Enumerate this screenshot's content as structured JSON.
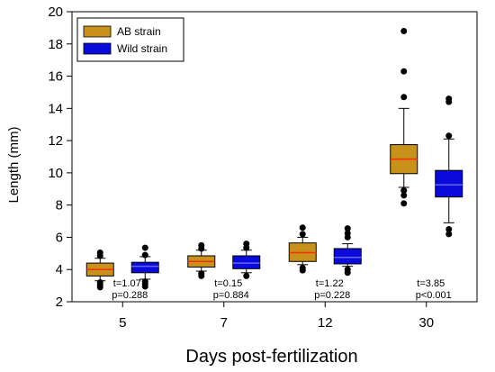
{
  "chart_data": {
    "type": "box",
    "xlabel": "Days post-fertilization",
    "ylabel": "Length (mm)",
    "ylim": [
      2,
      20
    ],
    "yticks": [
      2,
      4,
      6,
      8,
      10,
      12,
      14,
      16,
      18,
      20
    ],
    "categories": [
      "5",
      "7",
      "12",
      "30"
    ],
    "legend": {
      "placement": "top-left",
      "entries": [
        "AB strain",
        "Wild strain"
      ]
    },
    "series": [
      {
        "name": "AB strain",
        "box_color": "#c8911a",
        "median_color": "#ff2a00",
        "boxes": [
          {
            "category": "5",
            "whisker_low": 3.3,
            "q1": 3.6,
            "median": 4.0,
            "q3": 4.4,
            "whisker_high": 4.7,
            "outliers": [
              2.9,
              3.05,
              3.2,
              4.85,
              5.05
            ]
          },
          {
            "category": "7",
            "whisker_low": 3.9,
            "q1": 4.15,
            "median": 4.5,
            "q3": 4.85,
            "whisker_high": 5.2,
            "outliers": [
              3.6,
              3.75,
              5.3,
              5.5
            ]
          },
          {
            "category": "12",
            "whisker_low": 4.3,
            "q1": 4.5,
            "median": 5.05,
            "q3": 5.65,
            "whisker_high": 6.0,
            "outliers": [
              3.95,
              4.1,
              6.2,
              6.6
            ]
          },
          {
            "category": "30",
            "whisker_low": 9.1,
            "q1": 9.95,
            "median": 10.85,
            "q3": 11.75,
            "whisker_high": 14.0,
            "outliers": [
              8.1,
              8.6,
              8.9,
              14.7,
              16.3,
              18.8
            ]
          }
        ]
      },
      {
        "name": "Wild strain",
        "box_color": "#0a0adc",
        "median_color": "#6464ff",
        "boxes": [
          {
            "category": "5",
            "whisker_low": 3.4,
            "q1": 3.8,
            "median": 4.2,
            "q3": 4.45,
            "whisker_high": 4.8,
            "outliers": [
              2.95,
              3.1,
              3.25,
              4.9,
              5.35
            ]
          },
          {
            "category": "7",
            "whisker_low": 3.8,
            "q1": 4.05,
            "median": 4.4,
            "q3": 4.85,
            "whisker_high": 5.2,
            "outliers": [
              3.6,
              5.35,
              5.6
            ]
          },
          {
            "category": "12",
            "whisker_low": 4.2,
            "q1": 4.35,
            "median": 4.75,
            "q3": 5.3,
            "whisker_high": 5.6,
            "outliers": [
              3.8,
              4.0,
              6.0,
              6.25,
              6.55
            ]
          },
          {
            "category": "30",
            "whisker_low": 6.9,
            "q1": 8.5,
            "median": 9.25,
            "q3": 10.15,
            "whisker_high": 12.1,
            "outliers": [
              6.2,
              6.5,
              12.3,
              14.4,
              14.6
            ]
          }
        ]
      }
    ],
    "annotations": [
      {
        "category": "5",
        "t": "t=1.07",
        "p": "p=0.288"
      },
      {
        "category": "7",
        "t": "t=0.15",
        "p": "p=0.884"
      },
      {
        "category": "12",
        "t": "t=1.22",
        "p": "p=0.228"
      },
      {
        "category": "30",
        "t": "t=3.85",
        "p": "p<0.001"
      }
    ],
    "grid": false
  }
}
